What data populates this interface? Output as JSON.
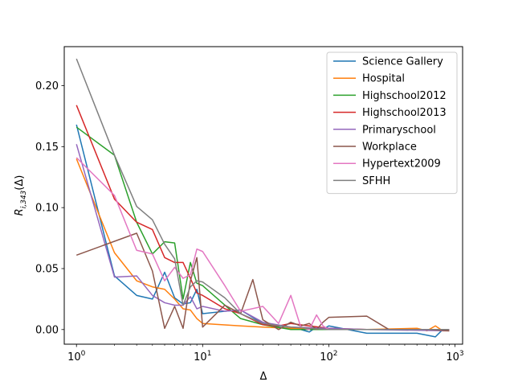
{
  "chart_data": {
    "type": "line",
    "xscale": "log",
    "xlabel": "Δ",
    "ylabel": "R_{i,343}(Δ)",
    "xlim": [
      0.8,
      1150
    ],
    "ylim": [
      -0.012,
      0.232
    ],
    "xticks": [
      {
        "value": 1,
        "base": "10",
        "exp": "0"
      },
      {
        "value": 10,
        "base": "10",
        "exp": "1"
      },
      {
        "value": 100,
        "base": "10",
        "exp": "2"
      },
      {
        "value": 1000,
        "base": "10",
        "exp": "3"
      }
    ],
    "yticks": [
      {
        "value": 0.0,
        "label": "0.00"
      },
      {
        "value": 0.05,
        "label": "0.05"
      },
      {
        "value": 0.1,
        "label": "0.10"
      },
      {
        "value": 0.15,
        "label": "0.15"
      },
      {
        "value": 0.2,
        "label": "0.20"
      }
    ],
    "grid": false,
    "legend_position": "top-right",
    "series": [
      {
        "name": "Science Gallery",
        "color": "#1f77b4",
        "x": [
          1,
          2,
          3,
          4,
          5,
          6,
          7,
          8,
          9,
          10,
          15,
          20,
          30,
          40,
          50,
          60,
          70,
          80,
          90,
          100,
          200,
          300,
          500,
          700,
          800,
          900
        ],
        "y": [
          0.168,
          0.044,
          0.028,
          0.025,
          0.047,
          0.026,
          0.021,
          0.022,
          0.033,
          0.013,
          0.015,
          0.016,
          0.005,
          0.002,
          0.001,
          0.0,
          -0.002,
          0.002,
          0.0,
          0.003,
          -0.003,
          -0.003,
          -0.003,
          -0.006,
          0.0,
          -0.001
        ]
      },
      {
        "name": "Hospital",
        "color": "#ff7f0e",
        "x": [
          1,
          2,
          3,
          4,
          5,
          6,
          7,
          8,
          9,
          10,
          20,
          30,
          50,
          80,
          100,
          200,
          500,
          600,
          700,
          800,
          900
        ],
        "y": [
          0.14,
          0.063,
          0.04,
          0.035,
          0.033,
          0.025,
          0.017,
          0.016,
          0.009,
          0.005,
          0.003,
          0.002,
          0.001,
          0.001,
          0.0,
          0.0,
          0.001,
          -0.001,
          0.003,
          -0.001,
          -0.001
        ]
      },
      {
        "name": "Highschool2012",
        "color": "#2ca02c",
        "x": [
          1,
          2,
          3,
          4,
          5,
          6,
          7,
          8,
          9,
          10,
          15,
          20,
          30,
          50,
          100,
          200,
          900
        ],
        "y": [
          0.166,
          0.143,
          0.088,
          0.062,
          0.072,
          0.071,
          0.025,
          0.055,
          0.038,
          0.036,
          0.02,
          0.009,
          0.004,
          0.0,
          0.0,
          0.0,
          0.0
        ]
      },
      {
        "name": "Highschool2013",
        "color": "#d62728",
        "x": [
          1,
          2,
          3,
          4,
          5,
          6,
          7,
          8,
          9,
          10,
          15,
          20,
          30,
          40,
          50,
          70,
          100,
          200,
          900
        ],
        "y": [
          0.184,
          0.107,
          0.088,
          0.082,
          0.059,
          0.055,
          0.055,
          0.042,
          0.03,
          0.028,
          0.017,
          0.013,
          0.004,
          0.003,
          0.005,
          0.003,
          0.001,
          0.0,
          0.0
        ]
      },
      {
        "name": "Primaryschool",
        "color": "#9467bd",
        "x": [
          1,
          2,
          3,
          4,
          5,
          6,
          7,
          8,
          9,
          10,
          15,
          20,
          30,
          50,
          100,
          200,
          900
        ],
        "y": [
          0.152,
          0.043,
          0.044,
          0.028,
          0.022,
          0.02,
          0.02,
          0.027,
          0.017,
          0.019,
          0.015,
          0.016,
          0.006,
          0.002,
          0.001,
          0.0,
          -0.001
        ]
      },
      {
        "name": "Workplace",
        "color": "#8c564b",
        "x": [
          1,
          3,
          4,
          5,
          6,
          7,
          8,
          9,
          10,
          15,
          20,
          25,
          30,
          40,
          50,
          60,
          70,
          80,
          90,
          100,
          200,
          300,
          600,
          900
        ],
        "y": [
          0.061,
          0.079,
          0.048,
          0.001,
          0.019,
          0.001,
          0.04,
          0.059,
          0.002,
          0.02,
          0.013,
          0.041,
          0.008,
          0.0,
          0.006,
          0.003,
          0.005,
          0.0,
          0.006,
          0.01,
          0.011,
          0.0,
          0.0,
          -0.001
        ]
      },
      {
        "name": "Hypertext2009",
        "color": "#e377c2",
        "x": [
          1,
          2,
          3,
          4,
          5,
          6,
          7,
          8,
          9,
          10,
          15,
          20,
          30,
          40,
          50,
          60,
          70,
          80,
          90,
          100,
          200,
          900
        ],
        "y": [
          0.141,
          0.11,
          0.065,
          0.062,
          0.04,
          0.051,
          0.042,
          0.045,
          0.066,
          0.064,
          0.036,
          0.015,
          0.019,
          0.005,
          0.028,
          0.002,
          0.0,
          0.012,
          0.003,
          0.0,
          0.0,
          0.0
        ]
      },
      {
        "name": "SFHH",
        "color": "#7f7f7f",
        "x": [
          1,
          2,
          3,
          4,
          5,
          6,
          7,
          8,
          9,
          10,
          15,
          20,
          30,
          50,
          100,
          200,
          900
        ],
        "y": [
          0.222,
          0.143,
          0.101,
          0.09,
          0.07,
          0.058,
          0.02,
          0.035,
          0.04,
          0.039,
          0.026,
          0.013,
          0.005,
          0.002,
          0.0,
          0.0,
          0.0
        ]
      }
    ]
  }
}
